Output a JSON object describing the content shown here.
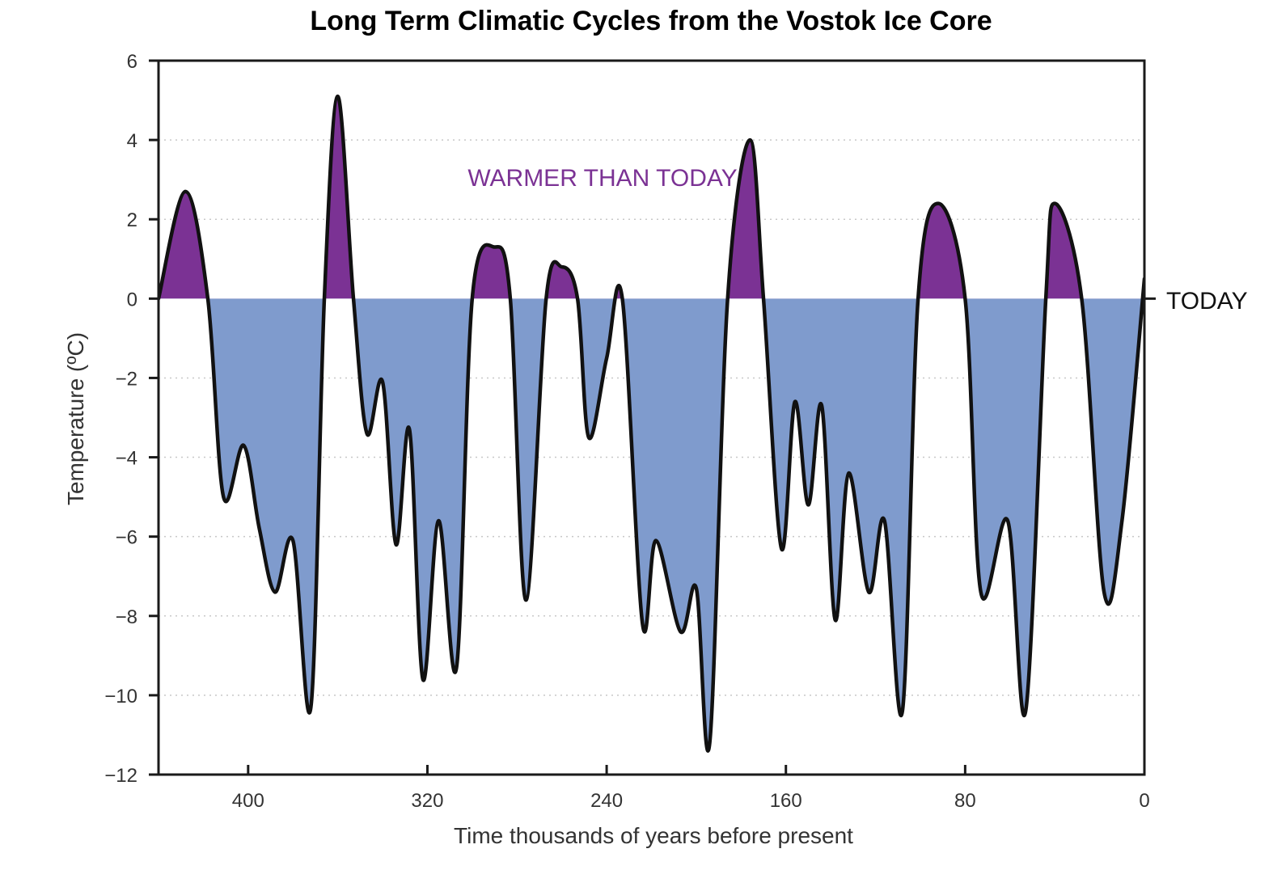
{
  "chart_data": {
    "type": "area",
    "title": "Long Term Climatic Cycles from the Vostok Ice Core",
    "xlabel": "Time thousands of years before present",
    "ylabel": "Temperature (ºC)",
    "xlim": [
      440,
      0
    ],
    "ylim": [
      -12,
      6
    ],
    "xticks": [
      400,
      320,
      240,
      160,
      80,
      0
    ],
    "yticks": [
      6,
      4,
      2,
      0,
      -2,
      -4,
      -6,
      -8,
      -10,
      -12
    ],
    "ytick_labels": [
      "6",
      "4",
      "2",
      "0",
      "−2",
      "−4",
      "−6",
      "−8",
      "−10",
      "−12"
    ],
    "grid": "horizontal-dotted",
    "baseline": 0,
    "baseline_label": "TODAY",
    "annotation": "WARMER THAN TODAY",
    "colors": {
      "warm": "#7b3294",
      "cold": "#7f9bcd",
      "line": "#111111",
      "annotation": "#7b3294"
    },
    "series": [
      {
        "x": [
          440,
          428,
          418,
          411,
          402,
          395,
          388,
          380,
          372,
          366,
          360,
          353,
          347,
          340,
          334,
          328,
          322,
          315,
          307,
          300,
          290,
          283,
          276,
          267,
          260,
          253,
          248,
          240,
          233,
          224,
          218,
          207,
          200,
          194,
          186,
          176,
          170,
          162,
          156,
          150,
          144,
          138,
          132,
          123,
          116,
          108,
          101,
          92,
          80,
          73,
          61,
          53,
          44,
          40,
          28,
          18,
          10,
          0
        ],
        "y": [
          0,
          2.7,
          0,
          -5,
          -3.7,
          -5.8,
          -7.4,
          -6.1,
          -10.3,
          0,
          5.1,
          0,
          -3.4,
          -2.1,
          -6.2,
          -3.3,
          -9.6,
          -5.6,
          -9.3,
          0,
          1.3,
          0,
          -7.6,
          0,
          0.8,
          0,
          -3.5,
          -1.5,
          0,
          -8.2,
          -6.1,
          -8.4,
          -7.3,
          -11.2,
          0,
          4,
          0,
          -6.3,
          -2.6,
          -5.2,
          -2.7,
          -8.1,
          -4.4,
          -7.4,
          -5.6,
          -10.4,
          0,
          2.4,
          0,
          -7.4,
          -5.6,
          -10.4,
          0,
          2.4,
          0,
          -7.4,
          -5.6,
          0.5
        ]
      }
    ]
  }
}
